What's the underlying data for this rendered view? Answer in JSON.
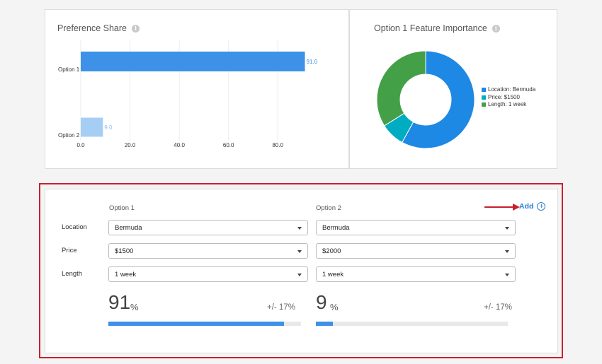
{
  "preference_share": {
    "title": "Preference Share",
    "info_icon": "info-icon"
  },
  "feature_importance": {
    "title": "Option 1 Feature Importance",
    "info_icon": "info-icon",
    "legend": [
      {
        "label": "Location: Bermuda",
        "color": "#1e88e5"
      },
      {
        "label": "Price: $1500",
        "color": "#00acc1"
      },
      {
        "label": "Length: 1 week",
        "color": "#43a047"
      }
    ]
  },
  "chart_data": [
    {
      "type": "bar",
      "orientation": "horizontal",
      "title": "Preference Share",
      "categories": [
        "Option 1",
        "Option 2"
      ],
      "values": [
        91.0,
        9.0
      ],
      "value_labels": [
        "91.0",
        "9.0"
      ],
      "colors": [
        "#3d91e6",
        "#a6cdf4"
      ],
      "xlim": [
        0,
        92
      ],
      "xticks": [
        "0.0",
        "20.0",
        "40.0",
        "60.0",
        "80.0"
      ],
      "xtick_values": [
        0,
        20,
        40,
        60,
        80
      ],
      "grid": true
    },
    {
      "type": "pie",
      "style": "donut",
      "title": "Option 1 Feature Importance",
      "labels": [
        "Location: Bermuda",
        "Price: $1500",
        "Length: 1 week"
      ],
      "values": [
        58,
        8,
        34
      ],
      "colors": [
        "#1e88e5",
        "#00acc1",
        "#43a047"
      ],
      "legend_position": "right"
    }
  ],
  "simulator": {
    "add_label": "Add",
    "options": [
      {
        "header": "Option 1",
        "location": "Bermuda",
        "price": "$1500",
        "length": "1 week",
        "share_value": "91",
        "share_unit": "%",
        "margin": "+/- 17%",
        "share_fraction": 0.91
      },
      {
        "header": "Option 2",
        "location": "Bermuda",
        "price": "$2000",
        "length": "1 week",
        "share_value": "9",
        "share_unit": "%",
        "margin": "+/- 17%",
        "share_fraction": 0.09
      }
    ],
    "row_labels": {
      "location": "Location",
      "price": "Price",
      "length": "Length"
    }
  },
  "annotation": {
    "arrow_color": "#c8202f",
    "highlight_color": "#c8202f"
  }
}
